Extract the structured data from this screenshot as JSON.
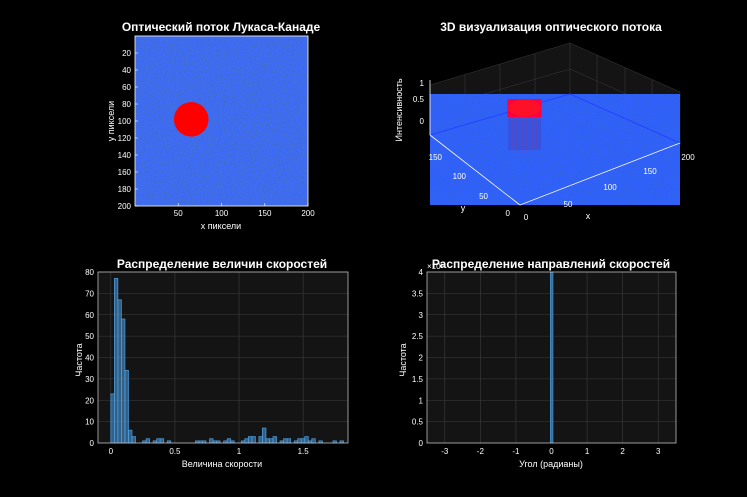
{
  "chart_data": [
    {
      "type": "heatmap",
      "title": "Оптический поток Лукаса-Канаде",
      "xlabel": "x пиксели",
      "ylabel": "y пиксели",
      "xlim": [
        0,
        200
      ],
      "ylim": [
        0,
        200
      ],
      "x_ticks": [
        "50",
        "100",
        "150",
        "200"
      ],
      "y_ticks": [
        "20",
        "40",
        "60",
        "80",
        "100",
        "120",
        "140",
        "160",
        "180",
        "200"
      ],
      "background": "noise",
      "circle": {
        "cx": 65,
        "cy": 98,
        "r": 20
      },
      "colors": {
        "high": "#ff0000",
        "low": "#1030e0"
      }
    },
    {
      "type": "surface",
      "title": "3D визуализация оптического потока",
      "xlabel": "x",
      "ylabel": "y",
      "zlabel": "Интенсивность",
      "x_ticks": [
        "0",
        "50",
        "100",
        "150",
        "200"
      ],
      "y_ticks": [
        "0",
        "50",
        "100",
        "150"
      ],
      "z_ticks": [
        "0",
        "0.5",
        "1"
      ],
      "zlim": [
        0,
        1
      ],
      "grid": true
    },
    {
      "type": "bar",
      "title": "Распределение величин скоростей",
      "xlabel": "Величина скорости",
      "ylabel": "Частота",
      "xlim": [
        -0.1,
        1.85
      ],
      "ylim": [
        0,
        80
      ],
      "x_ticks": [
        "0",
        "0.5",
        "1",
        "1.5"
      ],
      "y_ticks": [
        "0",
        "10",
        "20",
        "30",
        "40",
        "50",
        "60",
        "70",
        "80"
      ],
      "bin_width": 0.0275,
      "bin_starts": [
        0.0,
        0.0275,
        0.055,
        0.0825,
        0.11,
        0.1375,
        0.165,
        0.2475,
        0.275,
        0.33,
        0.3575,
        0.385,
        0.44,
        0.66,
        0.6875,
        0.715,
        0.77,
        0.7975,
        0.825,
        0.88,
        0.9075,
        0.935,
        1.0175,
        1.045,
        1.0725,
        1.1,
        1.155,
        1.1825,
        1.21,
        1.2375,
        1.265,
        1.32,
        1.3475,
        1.375,
        1.43,
        1.4575,
        1.485,
        1.5125,
        1.54,
        1.5675,
        1.6225,
        1.7325,
        1.7875
      ],
      "values": [
        23,
        77,
        67,
        58,
        34,
        6,
        3,
        1,
        2,
        1,
        2,
        2,
        1,
        1,
        1,
        1,
        2,
        1,
        1,
        1,
        2,
        1,
        1,
        2,
        3,
        3,
        3,
        7,
        2,
        2,
        3,
        1,
        2,
        2,
        1,
        2,
        2,
        3,
        1,
        2,
        1,
        1,
        1
      ],
      "bar_color": "#4d9ee0",
      "grid": true
    },
    {
      "type": "bar",
      "title": "Распределение направлений скоростей",
      "xlabel": "Угол (радианы)",
      "ylabel": "Частота",
      "xlim": [
        -3.5,
        3.5
      ],
      "ylim": [
        0,
        4
      ],
      "exponent": "×10⁴",
      "x_ticks": [
        "-3",
        "-2",
        "-1",
        "0",
        "1",
        "2",
        "3"
      ],
      "y_ticks": [
        "0",
        "0.5",
        "1",
        "1.5",
        "2",
        "2.5",
        "3",
        "3.5",
        "4"
      ],
      "bin_width": 0.07,
      "bin_starts": [
        -0.03
      ],
      "values": [
        4
      ],
      "bar_color": "#4d9ee0",
      "grid": true
    }
  ]
}
